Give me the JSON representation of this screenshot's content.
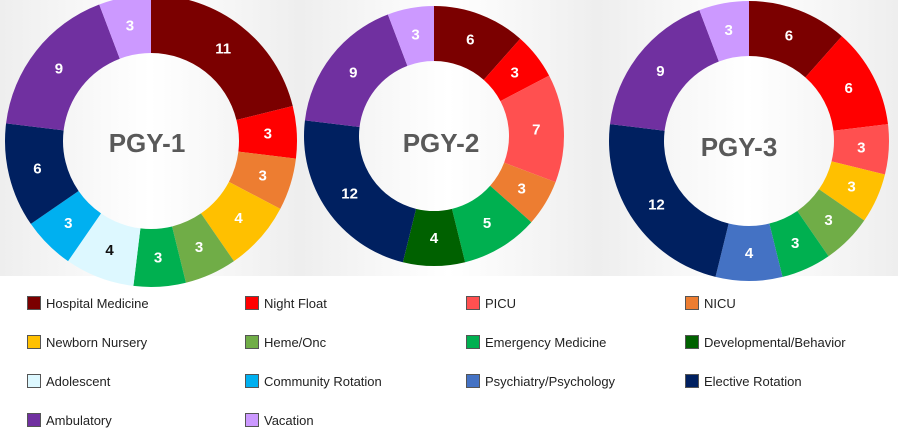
{
  "chart_data": [
    {
      "type": "pie",
      "title": "PGY-1",
      "slices": [
        {
          "category": "Hospital Medicine",
          "value": 11
        },
        {
          "category": "Night Float",
          "value": 3
        },
        {
          "category": "NICU",
          "value": 3
        },
        {
          "category": "Newborn Nursery",
          "value": 4
        },
        {
          "category": "Heme/Onc",
          "value": 3
        },
        {
          "category": "Emergency Medicine",
          "value": 3
        },
        {
          "category": "Adolescent",
          "value": 4
        },
        {
          "category": "Community Rotation",
          "value": 3
        },
        {
          "category": "Elective Rotation",
          "value": 6
        },
        {
          "category": "Ambulatory",
          "value": 9
        },
        {
          "category": "Vacation",
          "value": 3
        }
      ]
    },
    {
      "type": "pie",
      "title": "PGY-2",
      "slices": [
        {
          "category": "Hospital Medicine",
          "value": 6
        },
        {
          "category": "Night Float",
          "value": 3
        },
        {
          "category": "PICU",
          "value": 7
        },
        {
          "category": "NICU",
          "value": 3
        },
        {
          "category": "Emergency Medicine",
          "value": 5
        },
        {
          "category": "Developmental/Behavior",
          "value": 4
        },
        {
          "category": "Elective Rotation",
          "value": 12
        },
        {
          "category": "Ambulatory",
          "value": 9
        },
        {
          "category": "Vacation",
          "value": 3
        }
      ]
    },
    {
      "type": "pie",
      "title": "PGY-3",
      "slices": [
        {
          "category": "Hospital Medicine",
          "value": 6
        },
        {
          "category": "Night Float",
          "value": 6
        },
        {
          "category": "PICU",
          "value": 3
        },
        {
          "category": "Newborn Nursery",
          "value": 3
        },
        {
          "category": "Heme/Onc",
          "value": 3
        },
        {
          "category": "Emergency Medicine",
          "value": 3
        },
        {
          "category": "Psychiatry/Psychology",
          "value": 4
        },
        {
          "category": "Elective Rotation",
          "value": 12
        },
        {
          "category": "Ambulatory",
          "value": 9
        },
        {
          "category": "Vacation",
          "value": 3
        }
      ]
    }
  ],
  "legend": [
    {
      "label": "Hospital Medicine",
      "color": "#7B0000"
    },
    {
      "label": "Night Float",
      "color": "#FF0000"
    },
    {
      "label": "PICU",
      "color": "#FF5050"
    },
    {
      "label": "NICU",
      "color": "#ED7D31"
    },
    {
      "label": "Newborn Nursery",
      "color": "#FFC000"
    },
    {
      "label": "Heme/Onc",
      "color": "#70AD47"
    },
    {
      "label": "Emergency Medicine",
      "color": "#00B050"
    },
    {
      "label": "Developmental/Behavior",
      "color": "#006100"
    },
    {
      "label": "Adolescent",
      "color": "#DDF8FF"
    },
    {
      "label": "Community Rotation",
      "color": "#00B0F0"
    },
    {
      "label": "Psychiatry/Psychology",
      "color": "#4472C4"
    },
    {
      "label": "Elective Rotation",
      "color": "#002060"
    },
    {
      "label": "Ambulatory",
      "color": "#7030A0"
    },
    {
      "label": "Vacation",
      "color": "#CC99FF"
    }
  ],
  "label_colors": {
    "light": "#ffffff",
    "dark": "#111111"
  }
}
